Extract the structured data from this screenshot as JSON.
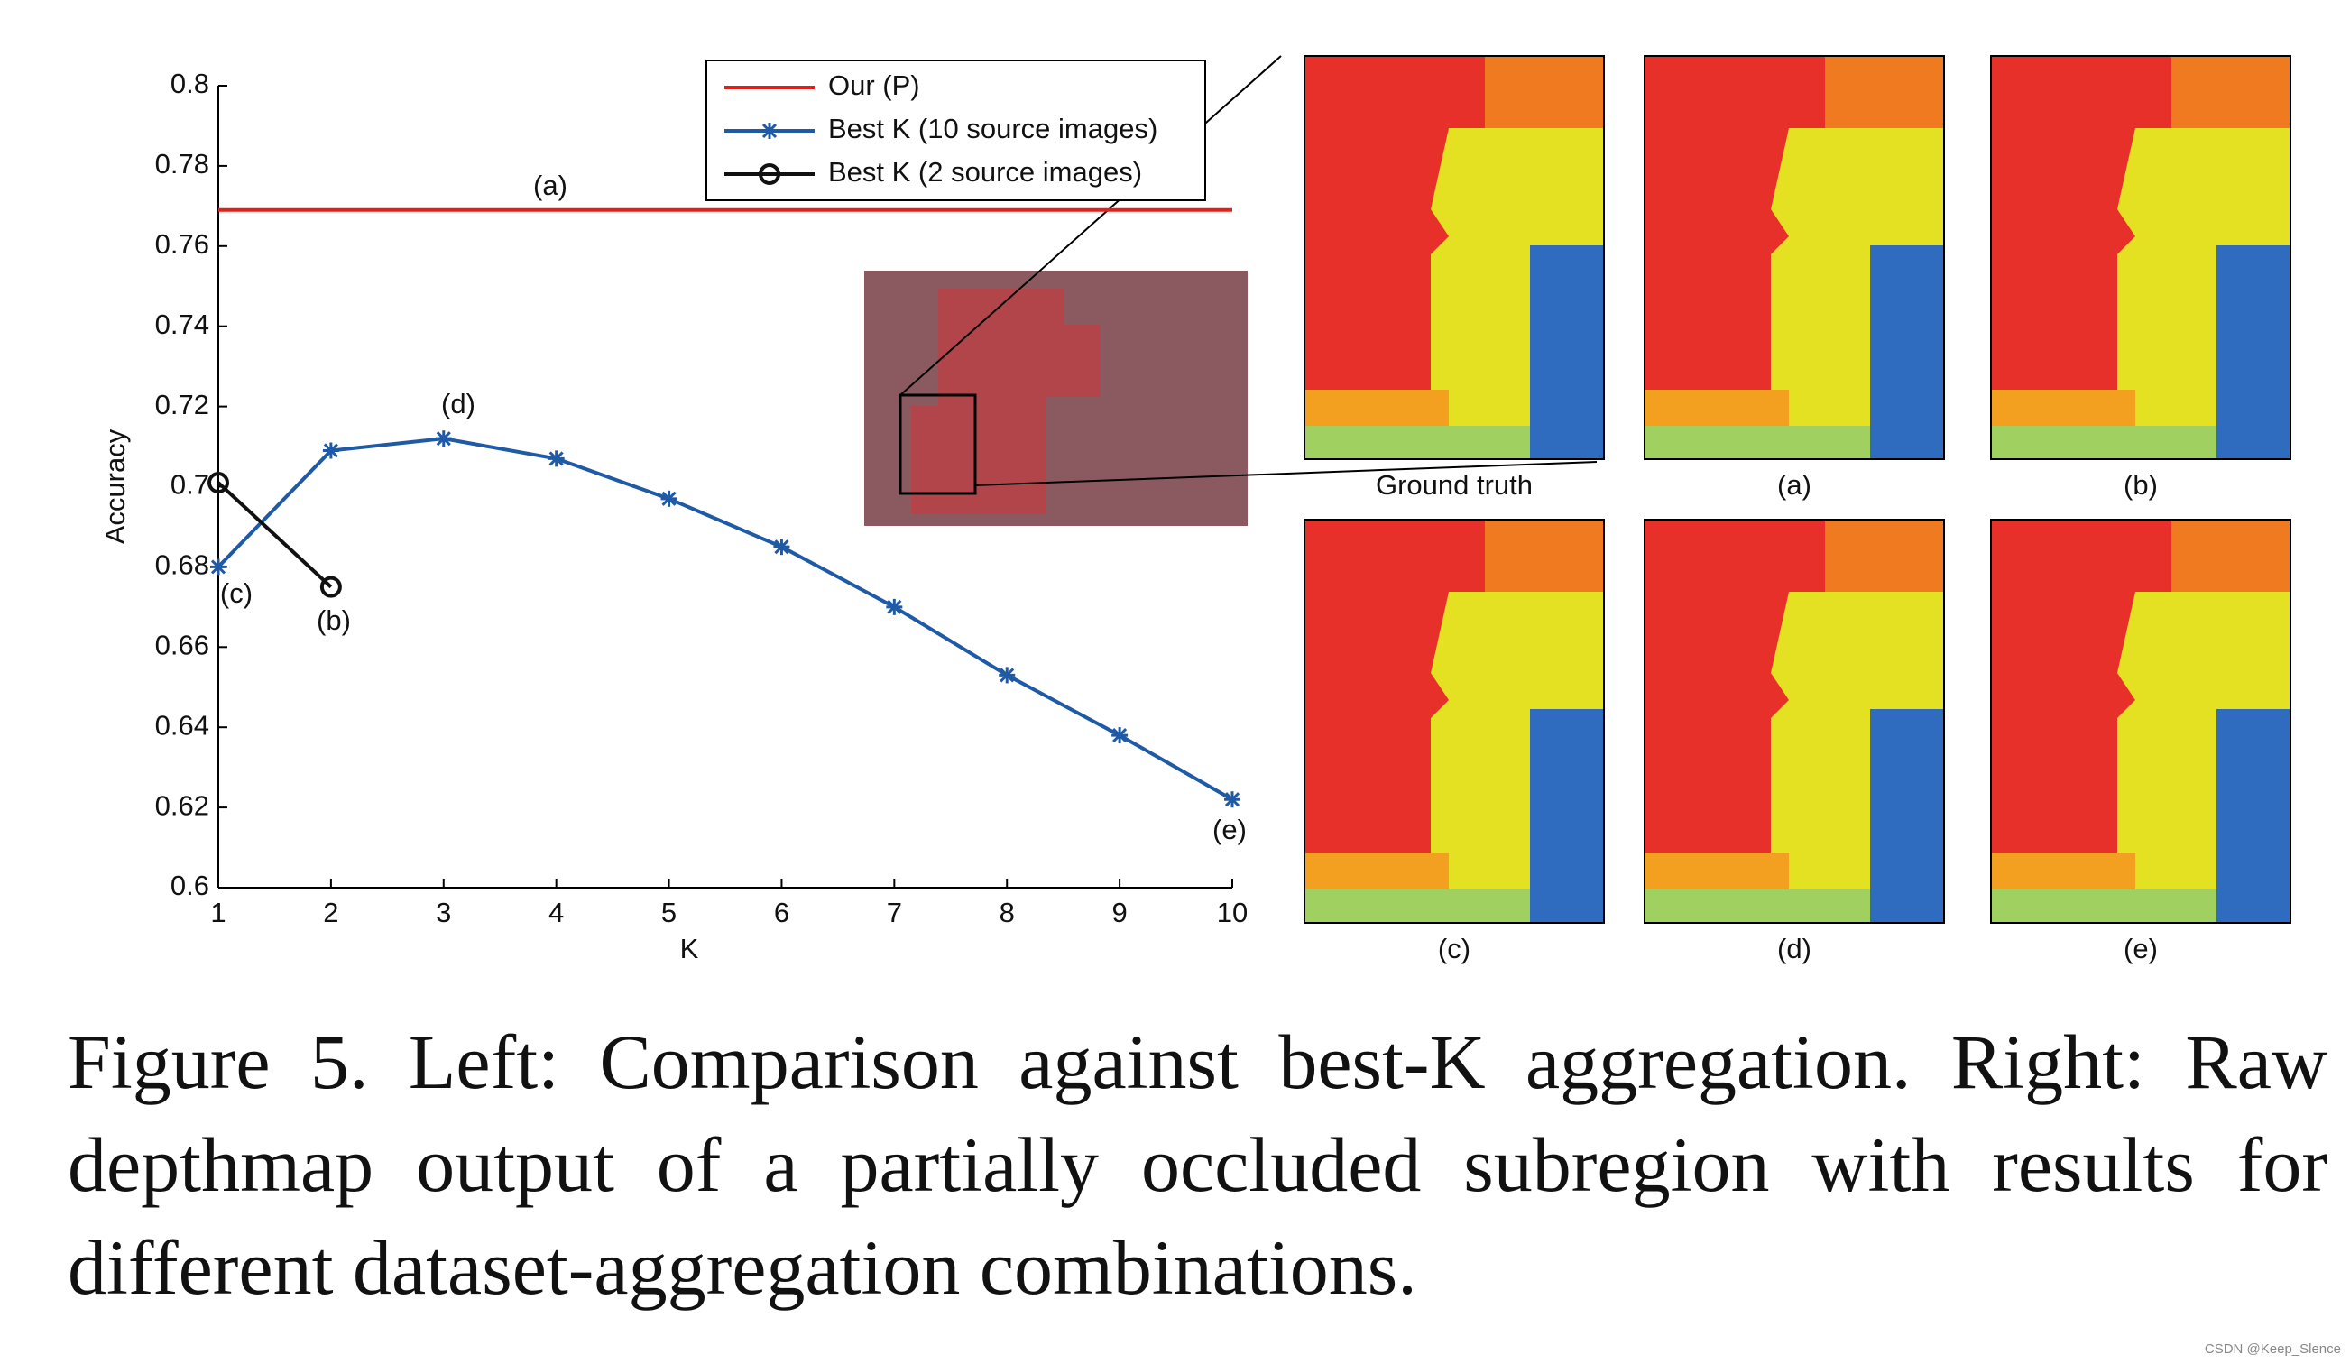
{
  "chart_data": {
    "type": "line",
    "x_label": "K",
    "y_label": "Accuracy",
    "xlim": [
      1,
      10
    ],
    "ylim": [
      0.6,
      0.8
    ],
    "xticks": [
      1,
      2,
      3,
      4,
      5,
      6,
      7,
      8,
      9,
      10
    ],
    "yticks": [
      0.6,
      0.62,
      0.64,
      0.66,
      0.68,
      0.7,
      0.72,
      0.74,
      0.76,
      0.78,
      0.8
    ],
    "legend": "top-right",
    "series": [
      {
        "name": "Our (P)",
        "color": "#e0201b",
        "marker": "none",
        "x": [
          1,
          10
        ],
        "values": [
          0.769,
          0.769
        ]
      },
      {
        "name": "Best K (10 source images)",
        "color": "#1f5aa6",
        "marker": "star",
        "x": [
          1,
          2,
          3,
          4,
          5,
          6,
          7,
          8,
          9,
          10
        ],
        "values": [
          0.68,
          0.709,
          0.712,
          0.707,
          0.697,
          0.685,
          0.67,
          0.653,
          0.638,
          0.622
        ]
      },
      {
        "name": "Best K (2 source images)",
        "color": "#111111",
        "marker": "circle",
        "x": [
          1,
          2
        ],
        "values": [
          0.701,
          0.675
        ]
      }
    ],
    "annotations": [
      "(a)",
      "(b)",
      "(c)",
      "(d)",
      "(e)"
    ]
  },
  "panels": {
    "labels": [
      "Ground truth",
      "(a)",
      "(b)",
      "(c)",
      "(d)",
      "(e)"
    ]
  },
  "caption": "Figure 5. Left: Comparison against best-K aggregation. Right: Raw depthmap output of a partially occluded subregion with results for different dataset-aggregation combinations.",
  "watermark": "CSDN @Keep_Slence"
}
